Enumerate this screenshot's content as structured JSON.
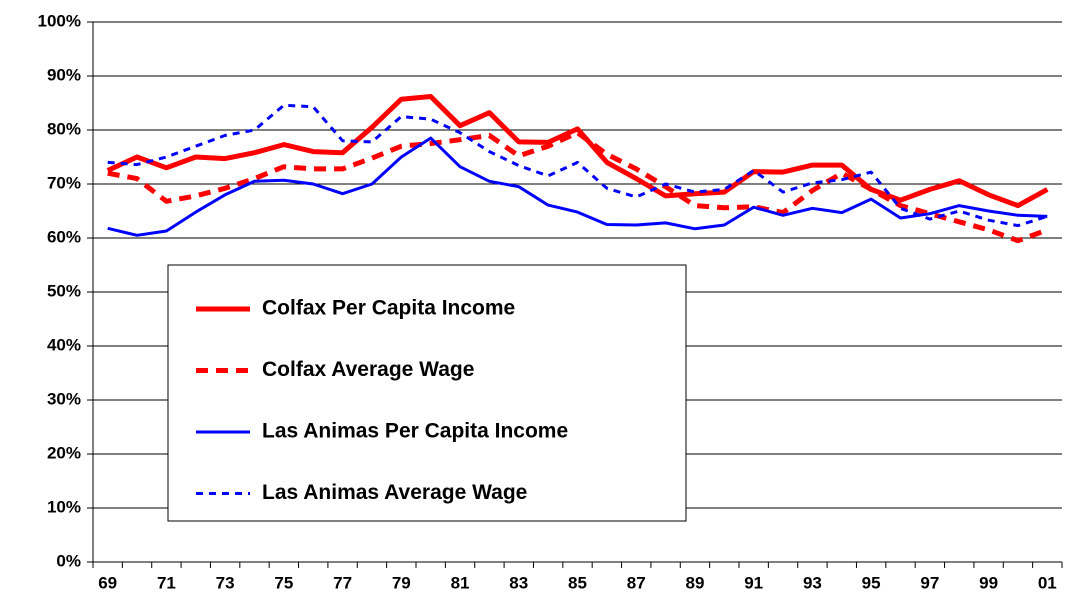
{
  "chart_data": {
    "type": "line",
    "categories": [
      "69",
      null,
      "71",
      null,
      "73",
      null,
      "75",
      null,
      "77",
      null,
      "79",
      null,
      "81",
      null,
      "83",
      null,
      "85",
      null,
      "87",
      null,
      "89",
      null,
      "91",
      null,
      "93",
      null,
      "95",
      null,
      "97",
      null,
      "99",
      null,
      "01"
    ],
    "series": [
      {
        "name": "Colfax Per Capita Income",
        "color": "#ff0000",
        "dash": "solid",
        "values": [
          72.5,
          75,
          73,
          75,
          74.7,
          75.8,
          77.3,
          76,
          75.8,
          80.5,
          85.7,
          86.2,
          80.8,
          83.2,
          77.8,
          77.7,
          80.2,
          74,
          71,
          67.8,
          68.2,
          68.5,
          72.3,
          72.2,
          73.5,
          73.5,
          69,
          67,
          69,
          70.6,
          68,
          66,
          69
        ]
      },
      {
        "name": "Colfax Average Wage",
        "color": "#ff0000",
        "dash": "dashed",
        "values": [
          72,
          71,
          66.8,
          67.8,
          69.2,
          71,
          73.2,
          72.8,
          72.8,
          74.8,
          77,
          77.5,
          78.2,
          79,
          75.2,
          77,
          79.5,
          75.5,
          72.8,
          69.5,
          66,
          65.6,
          65.8,
          64.7,
          68.8,
          72,
          69,
          66,
          64.5,
          63,
          61.5,
          59.5,
          61.5
        ]
      },
      {
        "name": "Las Animas Per Capita Income",
        "color": "#0000ff",
        "dash": "solid",
        "values": [
          61.8,
          60.5,
          61.3,
          64.8,
          68,
          70.5,
          70.7,
          70,
          68.2,
          70,
          75,
          78.5,
          73.2,
          70.5,
          69.5,
          66.1,
          64.8,
          62.5,
          62.4,
          62.8,
          61.7,
          62.4,
          65.7,
          64.2,
          65.5,
          64.7,
          67.2,
          63.7,
          64.5,
          66,
          65,
          64.2,
          64
        ]
      },
      {
        "name": "Las Animas Average Wage",
        "color": "#0000ff",
        "dash": "dotted",
        "values": [
          74,
          73.6,
          75,
          77,
          79,
          80,
          84.6,
          84.3,
          78,
          77.8,
          82.5,
          82,
          79.5,
          76,
          73.4,
          71.5,
          74,
          69.2,
          67.6,
          70,
          68.5,
          69,
          72.5,
          68.5,
          70.2,
          70.8,
          72.2,
          65.5,
          63.5,
          65,
          63.3,
          62.3,
          64
        ]
      }
    ],
    "ylim": [
      0,
      100
    ],
    "yticks": [
      {
        "value": 0,
        "label": "0%"
      },
      {
        "value": 10,
        "label": "10%"
      },
      {
        "value": 20,
        "label": "20%"
      },
      {
        "value": 30,
        "label": "30%"
      },
      {
        "value": 40,
        "label": "40%"
      },
      {
        "value": 50,
        "label": "50%"
      },
      {
        "value": 60,
        "label": "60%"
      },
      {
        "value": 70,
        "label": "70%"
      },
      {
        "value": 80,
        "label": "80%"
      },
      {
        "value": 90,
        "label": "90%"
      },
      {
        "value": 100,
        "label": "100%"
      }
    ],
    "grid": true,
    "legend": "lower left"
  }
}
